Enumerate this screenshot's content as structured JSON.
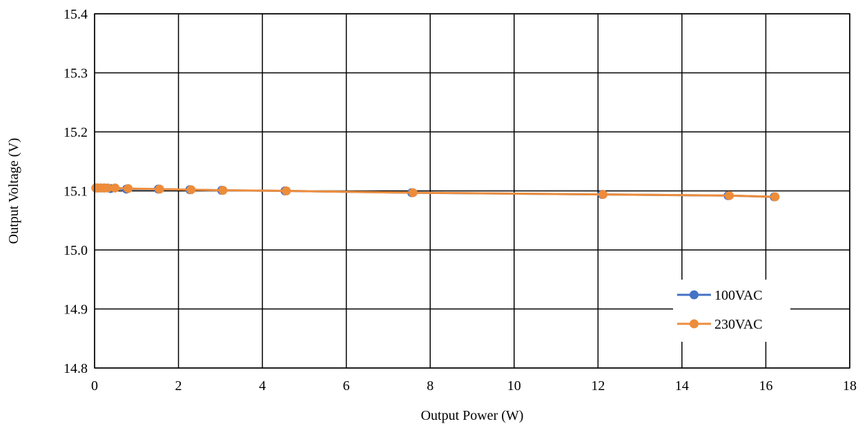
{
  "chart_data": {
    "type": "line",
    "title": "",
    "xlabel": "Output Power (W)",
    "ylabel": "Output Voltage (V)",
    "xlim": [
      0,
      18
    ],
    "ylim": [
      14.8,
      15.4
    ],
    "x_ticks": [
      "0",
      "2",
      "4",
      "6",
      "8",
      "10",
      "12",
      "14",
      "16",
      "18"
    ],
    "y_ticks": [
      "14.8",
      "14.9",
      "15.0",
      "15.1",
      "15.2",
      "15.3",
      "15.4"
    ],
    "grid": true,
    "legend_position": "bottom-right",
    "series": [
      {
        "name": "100VAC",
        "color": "#4472C4",
        "points": [
          [
            0.03,
            15.105
          ],
          [
            0.08,
            15.105
          ],
          [
            0.15,
            15.105
          ],
          [
            0.23,
            15.105
          ],
          [
            0.38,
            15.104
          ],
          [
            0.76,
            15.103
          ],
          [
            1.52,
            15.103
          ],
          [
            2.27,
            15.102
          ],
          [
            3.03,
            15.101
          ],
          [
            4.54,
            15.1
          ],
          [
            7.56,
            15.097
          ],
          [
            12.1,
            15.094
          ],
          [
            15.1,
            15.092
          ],
          [
            16.2,
            15.09
          ]
        ]
      },
      {
        "name": "230VAC",
        "color": "#ED8C3B",
        "points": [
          [
            0.03,
            15.105
          ],
          [
            0.08,
            15.105
          ],
          [
            0.15,
            15.105
          ],
          [
            0.23,
            15.105
          ],
          [
            0.31,
            15.105
          ],
          [
            0.49,
            15.105
          ],
          [
            0.8,
            15.104
          ],
          [
            1.55,
            15.103
          ],
          [
            2.3,
            15.102
          ],
          [
            3.06,
            15.101
          ],
          [
            4.57,
            15.1
          ],
          [
            7.59,
            15.097
          ],
          [
            12.12,
            15.094
          ],
          [
            15.13,
            15.092
          ],
          [
            16.22,
            15.09
          ]
        ]
      }
    ]
  }
}
